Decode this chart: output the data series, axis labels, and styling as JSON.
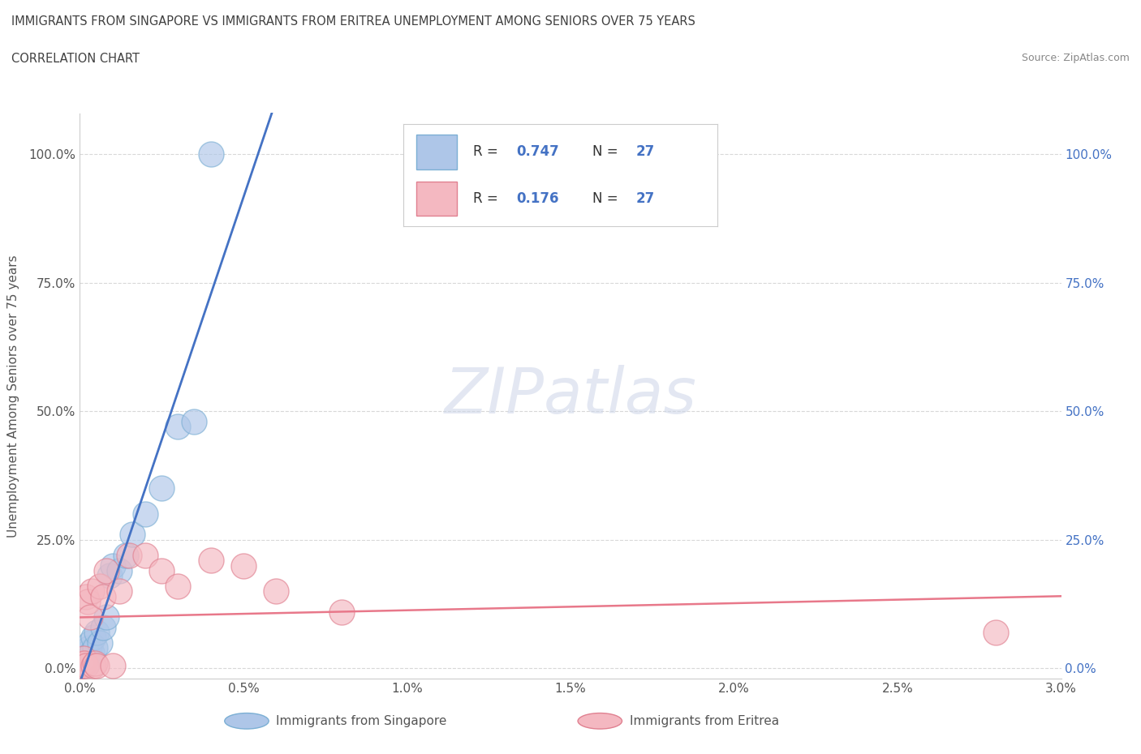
{
  "title_line1": "IMMIGRANTS FROM SINGAPORE VS IMMIGRANTS FROM ERITREA UNEMPLOYMENT AMONG SENIORS OVER 75 YEARS",
  "title_line2": "CORRELATION CHART",
  "source_text": "Source: ZipAtlas.com",
  "ylabel": "Unemployment Among Seniors over 75 years",
  "xlim": [
    0.0,
    0.03
  ],
  "ylim": [
    -0.02,
    1.08
  ],
  "xtick_labels": [
    "0.0%",
    "0.5%",
    "1.0%",
    "1.5%",
    "2.0%",
    "2.5%",
    "3.0%"
  ],
  "xtick_vals": [
    0.0,
    0.005,
    0.01,
    0.015,
    0.02,
    0.025,
    0.03
  ],
  "ytick_labels": [
    "0.0%",
    "25.0%",
    "50.0%",
    "75.0%",
    "100.0%"
  ],
  "ytick_vals": [
    0.0,
    0.25,
    0.5,
    0.75,
    1.0
  ],
  "watermark": "ZIPatlas",
  "singapore_points": [
    [
      5e-05,
      0.01
    ],
    [
      0.0001,
      0.005
    ],
    [
      0.00012,
      0.015
    ],
    [
      0.00015,
      0.02
    ],
    [
      0.00018,
      0.01
    ],
    [
      0.0002,
      0.02
    ],
    [
      0.00022,
      0.03
    ],
    [
      0.00025,
      0.01
    ],
    [
      0.00028,
      0.04
    ],
    [
      0.0003,
      0.05
    ],
    [
      0.00035,
      0.03
    ],
    [
      0.0004,
      0.06
    ],
    [
      0.00045,
      0.04
    ],
    [
      0.0005,
      0.07
    ],
    [
      0.0006,
      0.05
    ],
    [
      0.0007,
      0.08
    ],
    [
      0.0008,
      0.1
    ],
    [
      0.0009,
      0.18
    ],
    [
      0.001,
      0.2
    ],
    [
      0.0012,
      0.19
    ],
    [
      0.0014,
      0.22
    ],
    [
      0.0016,
      0.26
    ],
    [
      0.002,
      0.3
    ],
    [
      0.0025,
      0.35
    ],
    [
      0.003,
      0.47
    ],
    [
      0.0035,
      0.48
    ],
    [
      0.004,
      1.0
    ]
  ],
  "eritrea_points": [
    [
      5e-05,
      0.005
    ],
    [
      8e-05,
      0.01
    ],
    [
      0.0001,
      0.005
    ],
    [
      0.00012,
      0.02
    ],
    [
      0.00015,
      0.01
    ],
    [
      0.00018,
      0.005
    ],
    [
      0.0002,
      0.14
    ],
    [
      0.00025,
      0.13
    ],
    [
      0.0003,
      0.1
    ],
    [
      0.00035,
      0.15
    ],
    [
      0.0004,
      0.005
    ],
    [
      0.00045,
      0.01
    ],
    [
      0.0005,
      0.005
    ],
    [
      0.0006,
      0.16
    ],
    [
      0.0007,
      0.14
    ],
    [
      0.0008,
      0.19
    ],
    [
      0.001,
      0.005
    ],
    [
      0.0012,
      0.15
    ],
    [
      0.0015,
      0.22
    ],
    [
      0.002,
      0.22
    ],
    [
      0.0025,
      0.19
    ],
    [
      0.003,
      0.16
    ],
    [
      0.004,
      0.21
    ],
    [
      0.005,
      0.2
    ],
    [
      0.006,
      0.15
    ],
    [
      0.028,
      0.07
    ],
    [
      0.008,
      0.11
    ]
  ],
  "singapore_color": "#aec6e8",
  "eritrea_color": "#f4b8c1",
  "singapore_line_color": "#4472c4",
  "eritrea_line_color": "#e8788a",
  "background_color": "#ffffff",
  "title_color": "#404040",
  "grid_color": "#d8d8d8",
  "legend_R_sg": "0.747",
  "legend_N_sg": "27",
  "legend_R_er": "0.176",
  "legend_N_er": "27",
  "legend_label_sg": "Immigrants from Singapore",
  "legend_label_er": "Immigrants from Eritrea"
}
